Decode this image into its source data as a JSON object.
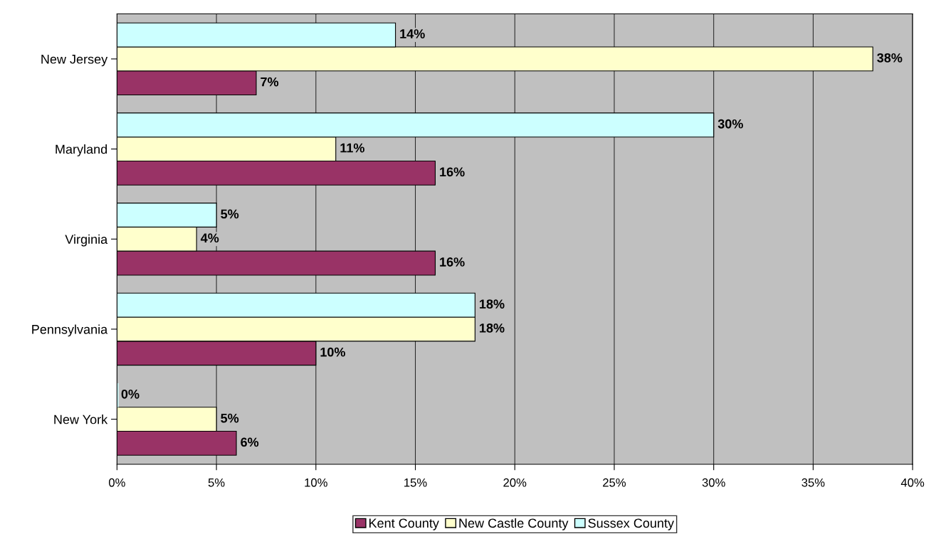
{
  "chart_data": {
    "type": "bar",
    "orientation": "horizontal",
    "categories": [
      "New Jersey",
      "Maryland",
      "Virginia",
      "Pennsylvania",
      "New York"
    ],
    "series": [
      {
        "name": "Kent County",
        "color": "#993366",
        "values": [
          7,
          16,
          16,
          10,
          6
        ],
        "value_labels": [
          "7%",
          "16%",
          "16%",
          "10%",
          "6%"
        ]
      },
      {
        "name": "New Castle County",
        "color": "#ffffcc",
        "values": [
          38,
          11,
          4,
          18,
          5
        ],
        "value_labels": [
          "38%",
          "11%",
          "4%",
          "18%",
          "5%"
        ]
      },
      {
        "name": "Sussex County",
        "color": "#ccffff",
        "values": [
          14,
          30,
          5,
          18,
          0
        ],
        "value_labels": [
          "14%",
          "30%",
          "5%",
          "18%",
          "0%"
        ]
      }
    ],
    "xlim": [
      0,
      40
    ],
    "xticks": [
      {
        "value": 0,
        "label": "0%"
      },
      {
        "value": 5,
        "label": "5%"
      },
      {
        "value": 10,
        "label": "10%"
      },
      {
        "value": 15,
        "label": "15%"
      },
      {
        "value": 20,
        "label": "20%"
      },
      {
        "value": 25,
        "label": "25%"
      },
      {
        "value": 30,
        "label": "30%"
      },
      {
        "value": 35,
        "label": "35%"
      },
      {
        "value": 40,
        "label": "40%"
      }
    ],
    "grid": "x",
    "legend": "bottom"
  }
}
